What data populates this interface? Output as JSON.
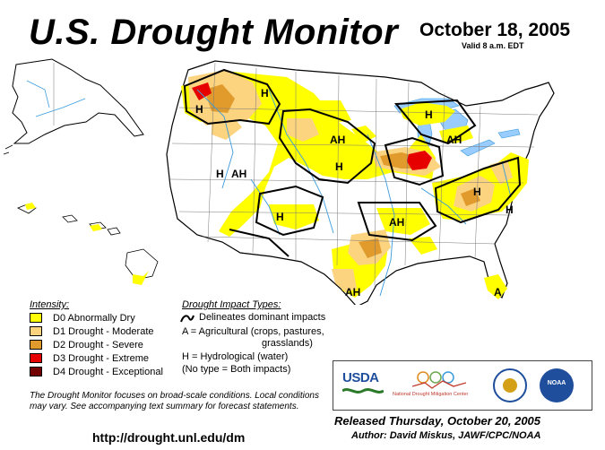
{
  "header": {
    "title": "U.S. Drought Monitor",
    "date": "October 18, 2005",
    "valid": "Valid 8 a.m. EDT"
  },
  "colors": {
    "d0": "#ffff00",
    "d1": "#fcd37f",
    "d2": "#e19b2d",
    "d3": "#e60000",
    "d4": "#730000",
    "water": "#99ccff",
    "rivers": "#3a9bdc",
    "land": "#ffffff"
  },
  "map": {
    "impact_labels": [
      "H",
      "H",
      "H",
      "AH",
      "AH",
      "H",
      "AH",
      "H",
      "H",
      "AH",
      "AH",
      "H",
      "A",
      "H"
    ]
  },
  "legend": {
    "title": "Intensity:",
    "items": [
      {
        "label": "D0 Abnormally Dry",
        "color": "#ffff00"
      },
      {
        "label": "D1 Drought - Moderate",
        "color": "#fcd37f"
      },
      {
        "label": "D2 Drought - Severe",
        "color": "#e19b2d"
      },
      {
        "label": "D3 Drought - Extreme",
        "color": "#e60000"
      },
      {
        "label": "D4 Drought - Exceptional",
        "color": "#730000"
      }
    ]
  },
  "impacts": {
    "title": "Drought Impact Types:",
    "lines": [
      "Delineates dominant impacts",
      "A = Agricultural (crops, pastures,",
      "grasslands)",
      "H = Hydrological (water)",
      "(No type = Both impacts)"
    ]
  },
  "note": "The Drought Monitor focuses on broad-scale conditions. Local conditions may vary.  See accompanying text summary for forecast statements.",
  "url": "http://drought.unl.edu/dm",
  "logos": {
    "usda": "USDA",
    "ndmc": "National Drought Mitigation Center",
    "noaa": "NOAA"
  },
  "released": "Released Thursday, October 20, 2005",
  "author": "Author:  David Miskus, JAWF/CPC/NOAA"
}
